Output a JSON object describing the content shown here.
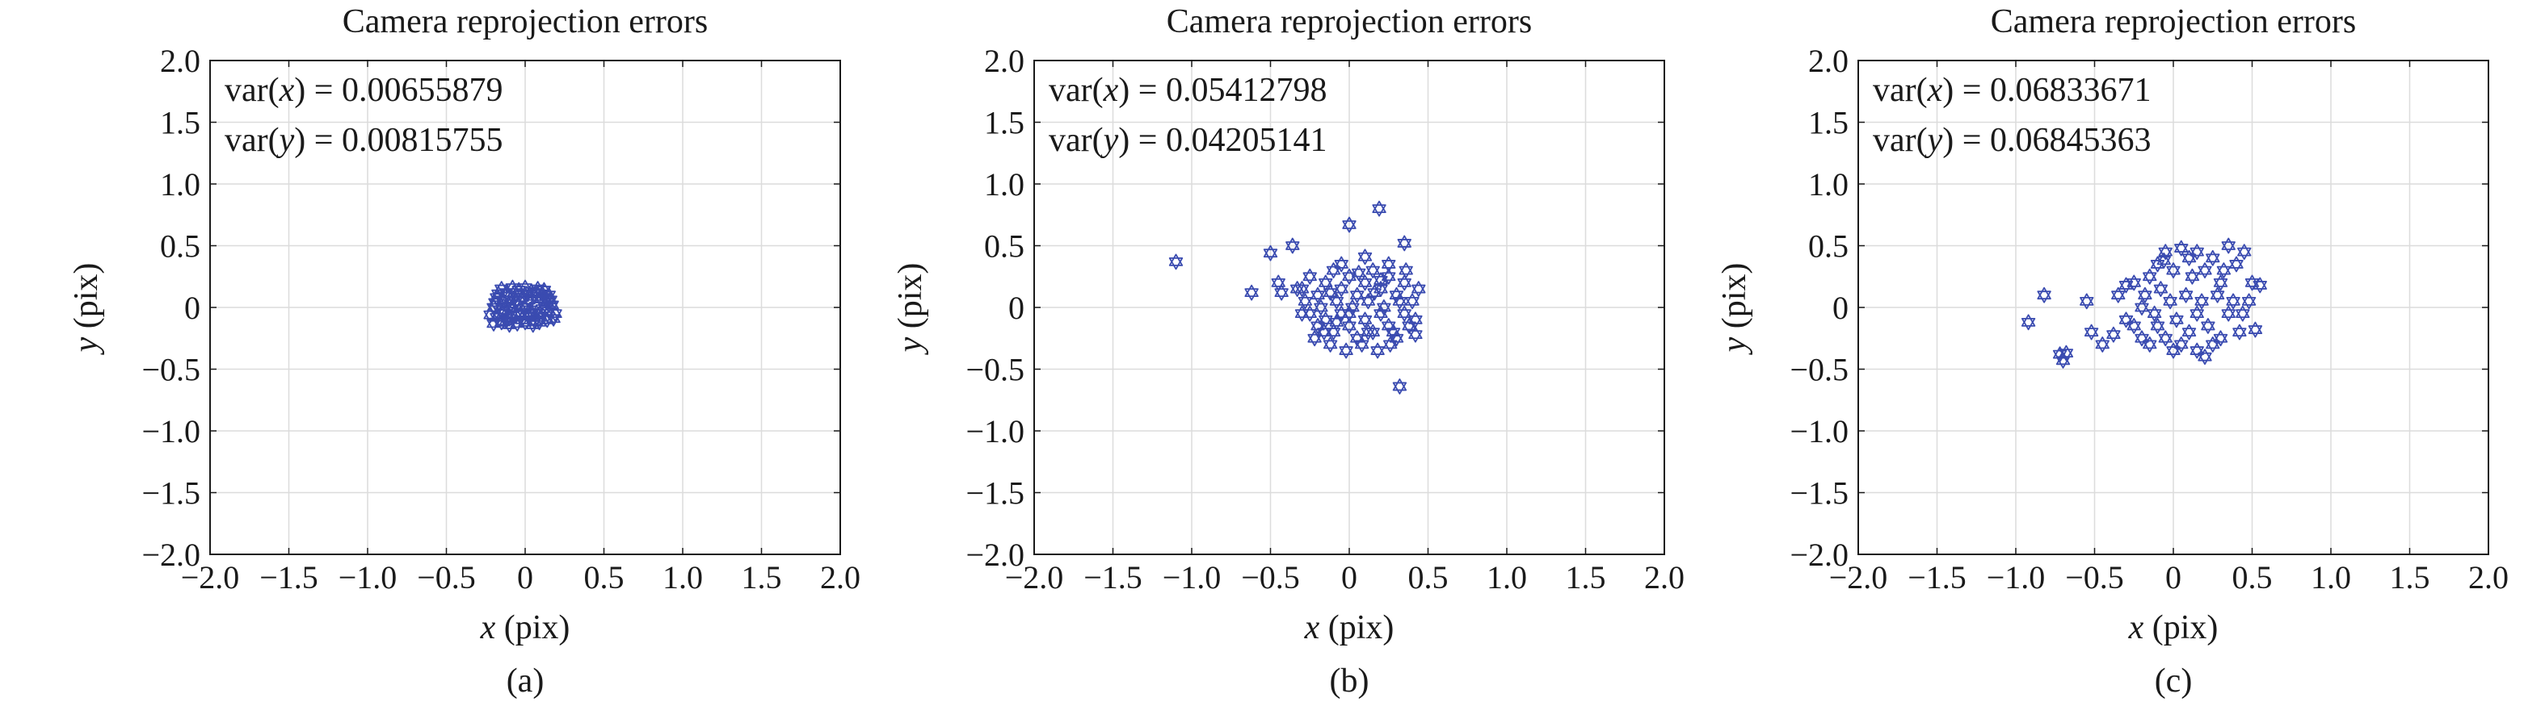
{
  "figure": {
    "panels": [
      "(a)",
      "(b)",
      "(c)"
    ]
  },
  "chart_data": [
    {
      "type": "scatter",
      "panel_label": "(a)",
      "title": "Camera reprojection errors",
      "xlabel": {
        "var": "x",
        "unit": "(pix)"
      },
      "ylabel": {
        "var": "y",
        "unit": "(pix)"
      },
      "xlim": [
        -2.0,
        2.0
      ],
      "ylim": [
        -2.0,
        2.0
      ],
      "xticks": [
        "−2.0",
        "−1.5",
        "−1.0",
        "−0.5",
        "0",
        "0.5",
        "1.0",
        "1.5",
        "2.0"
      ],
      "yticks": [
        "−2.0",
        "−1.5",
        "−1.0",
        "−0.5",
        "0",
        "0.5",
        "1.0",
        "1.5",
        "2.0"
      ],
      "grid": true,
      "marker": "hexagram",
      "marker_color": "#3a4bb0",
      "annotations": [
        {
          "prefix": "var(",
          "var": "x",
          "suffix": ") = 0.00655879"
        },
        {
          "prefix": "var(",
          "var": "y",
          "suffix": ") = 0.00815755"
        }
      ],
      "series": [
        {
          "points": [
            [
              -0.15,
              0.15
            ],
            [
              -0.12,
              0.12
            ],
            [
              -0.08,
              0.16
            ],
            [
              -0.04,
              0.14
            ],
            [
              0.0,
              0.16
            ],
            [
              0.04,
              0.13
            ],
            [
              0.08,
              0.15
            ],
            [
              0.12,
              0.14
            ],
            [
              0.15,
              0.1
            ],
            [
              -0.18,
              0.08
            ],
            [
              -0.14,
              0.06
            ],
            [
              -0.1,
              0.09
            ],
            [
              -0.06,
              0.05
            ],
            [
              -0.02,
              0.08
            ],
            [
              0.02,
              0.06
            ],
            [
              0.06,
              0.09
            ],
            [
              0.1,
              0.07
            ],
            [
              0.14,
              0.04
            ],
            [
              0.17,
              0.02
            ],
            [
              -0.2,
              0.0
            ],
            [
              -0.16,
              -0.02
            ],
            [
              -0.12,
              0.01
            ],
            [
              -0.08,
              -0.01
            ],
            [
              -0.04,
              0.02
            ],
            [
              0.0,
              0.0
            ],
            [
              0.03,
              -0.02
            ],
            [
              0.07,
              0.01
            ],
            [
              0.11,
              -0.01
            ],
            [
              0.15,
              -0.03
            ],
            [
              -0.22,
              -0.06
            ],
            [
              -0.18,
              -0.08
            ],
            [
              -0.14,
              -0.05
            ],
            [
              -0.1,
              -0.09
            ],
            [
              -0.06,
              -0.06
            ],
            [
              -0.02,
              -0.1
            ],
            [
              0.02,
              -0.07
            ],
            [
              0.06,
              -0.11
            ],
            [
              0.1,
              -0.08
            ],
            [
              0.14,
              -0.1
            ],
            [
              0.18,
              -0.09
            ],
            [
              -0.2,
              -0.13
            ],
            [
              -0.15,
              -0.12
            ],
            [
              -0.1,
              -0.14
            ],
            [
              -0.05,
              -0.13
            ],
            [
              0.0,
              -0.12
            ],
            [
              0.05,
              -0.14
            ],
            [
              0.09,
              -0.12
            ],
            [
              -0.17,
              0.11
            ],
            [
              0.11,
              0.11
            ],
            [
              -0.07,
              0.12
            ],
            [
              0.04,
              -0.04
            ],
            [
              -0.12,
              -0.11
            ],
            [
              0.13,
              0.07
            ],
            [
              -0.03,
              -0.05
            ],
            [
              0.07,
              0.12
            ],
            [
              -0.19,
              0.04
            ],
            [
              0.16,
              0.06
            ],
            [
              -0.09,
              0.03
            ],
            [
              0.01,
              0.11
            ],
            [
              -0.14,
              -0.02
            ],
            [
              0.09,
              -0.05
            ],
            [
              0.19,
              -0.05
            ]
          ]
        }
      ]
    },
    {
      "type": "scatter",
      "panel_label": "(b)",
      "title": "Camera reprojection errors",
      "xlabel": {
        "var": "x",
        "unit": "(pix)"
      },
      "ylabel": {
        "var": "y",
        "unit": "(pix)"
      },
      "xlim": [
        -2.0,
        2.0
      ],
      "ylim": [
        -2.0,
        2.0
      ],
      "xticks": [
        "−2.0",
        "−1.5",
        "−1.0",
        "−0.5",
        "0",
        "0.5",
        "1.0",
        "1.5",
        "2.0"
      ],
      "yticks": [
        "−2.0",
        "−1.5",
        "−1.0",
        "−0.5",
        "0",
        "0.5",
        "1.0",
        "1.5",
        "2.0"
      ],
      "grid": true,
      "marker": "hexagram",
      "marker_color": "#3a4bb0",
      "annotations": [
        {
          "prefix": "var(",
          "var": "x",
          "suffix": ") = 0.05412798"
        },
        {
          "prefix": "var(",
          "var": "y",
          "suffix": ") = 0.04205141"
        }
      ],
      "series": [
        {
          "points": [
            [
              -1.1,
              0.37
            ],
            [
              -0.62,
              0.12
            ],
            [
              -0.5,
              0.44
            ],
            [
              -0.45,
              0.2
            ],
            [
              -0.43,
              0.12
            ],
            [
              -0.36,
              0.5
            ],
            [
              -0.33,
              0.15
            ],
            [
              -0.3,
              -0.05
            ],
            [
              0.0,
              0.67
            ],
            [
              0.19,
              0.8
            ],
            [
              0.35,
              0.52
            ],
            [
              0.32,
              -0.64
            ],
            [
              0.1,
              0.41
            ],
            [
              -0.25,
              0.25
            ],
            [
              -0.2,
              0.1
            ],
            [
              -0.15,
              0.2
            ],
            [
              -0.1,
              0.3
            ],
            [
              -0.05,
              0.15
            ],
            [
              0.0,
              0.25
            ],
            [
              0.05,
              0.1
            ],
            [
              0.1,
              0.2
            ],
            [
              0.15,
              0.3
            ],
            [
              0.2,
              0.15
            ],
            [
              0.25,
              0.25
            ],
            [
              0.3,
              0.1
            ],
            [
              0.35,
              0.2
            ],
            [
              0.4,
              0.05
            ],
            [
              0.42,
              -0.1
            ],
            [
              -0.25,
              -0.05
            ],
            [
              -0.2,
              -0.15
            ],
            [
              -0.15,
              -0.1
            ],
            [
              -0.1,
              -0.2
            ],
            [
              -0.05,
              -0.05
            ],
            [
              0.0,
              -0.15
            ],
            [
              0.05,
              -0.25
            ],
            [
              0.1,
              -0.1
            ],
            [
              0.15,
              -0.2
            ],
            [
              0.2,
              -0.05
            ],
            [
              0.25,
              -0.15
            ],
            [
              0.3,
              -0.25
            ],
            [
              0.35,
              -0.05
            ],
            [
              -0.22,
              -0.25
            ],
            [
              -0.12,
              -0.3
            ],
            [
              -0.02,
              -0.35
            ],
            [
              0.08,
              -0.3
            ],
            [
              0.18,
              -0.35
            ],
            [
              0.28,
              -0.2
            ],
            [
              0.38,
              -0.15
            ],
            [
              -0.18,
              0.0
            ],
            [
              -0.08,
              0.05
            ],
            [
              0.02,
              0.0
            ],
            [
              0.12,
              0.05
            ],
            [
              0.22,
              0.0
            ],
            [
              0.32,
              0.05
            ],
            [
              -0.28,
              0.05
            ],
            [
              0.44,
              0.15
            ],
            [
              0.12,
              -0.2
            ],
            [
              -0.05,
              0.35
            ],
            [
              0.25,
              0.35
            ],
            [
              0.0,
              -0.05
            ],
            [
              -0.12,
              0.12
            ],
            [
              0.16,
              0.12
            ],
            [
              0.06,
              0.28
            ],
            [
              -0.16,
              -0.2
            ],
            [
              0.26,
              -0.3
            ],
            [
              0.36,
              0.3
            ],
            [
              -0.3,
              0.15
            ],
            [
              0.42,
              -0.22
            ],
            [
              -0.08,
              -0.12
            ],
            [
              0.2,
              0.22
            ]
          ]
        }
      ]
    },
    {
      "type": "scatter",
      "panel_label": "(c)",
      "title": "Camera reprojection errors",
      "xlabel": {
        "var": "x",
        "unit": "(pix)"
      },
      "ylabel": {
        "var": "y",
        "unit": "(pix)"
      },
      "xlim": [
        -2.0,
        2.0
      ],
      "ylim": [
        -2.0,
        2.0
      ],
      "xticks": [
        "−2.0",
        "−1.5",
        "−1.0",
        "−0.5",
        "0",
        "0.5",
        "1.0",
        "1.5",
        "2.0"
      ],
      "yticks": [
        "−2.0",
        "−1.5",
        "−1.0",
        "−0.5",
        "0",
        "0.5",
        "1.0",
        "1.5",
        "2.0"
      ],
      "grid": true,
      "marker": "hexagram",
      "marker_color": "#3a4bb0",
      "annotations": [
        {
          "prefix": "var(",
          "var": "x",
          "suffix": ") = 0.06833671"
        },
        {
          "prefix": "var(",
          "var": "y",
          "suffix": ") = 0.06845363"
        }
      ],
      "series": [
        {
          "points": [
            [
              -0.92,
              -0.12
            ],
            [
              -0.82,
              0.1
            ],
            [
              -0.72,
              -0.38
            ],
            [
              -0.7,
              -0.43
            ],
            [
              -0.68,
              -0.37
            ],
            [
              -0.55,
              0.05
            ],
            [
              -0.52,
              -0.2
            ],
            [
              -0.45,
              -0.3
            ],
            [
              -0.38,
              -0.22
            ],
            [
              -0.35,
              0.1
            ],
            [
              -0.3,
              -0.1
            ],
            [
              -0.25,
              0.2
            ],
            [
              -0.2,
              0.0
            ],
            [
              -0.2,
              -0.25
            ],
            [
              -0.15,
              0.25
            ],
            [
              -0.1,
              0.35
            ],
            [
              -0.05,
              0.45
            ],
            [
              0.0,
              0.3
            ],
            [
              0.05,
              0.48
            ],
            [
              0.1,
              0.4
            ],
            [
              0.15,
              0.45
            ],
            [
              0.2,
              0.3
            ],
            [
              0.25,
              0.4
            ],
            [
              0.3,
              0.2
            ],
            [
              0.35,
              0.5
            ],
            [
              0.4,
              0.35
            ],
            [
              0.45,
              0.45
            ],
            [
              0.5,
              0.2
            ],
            [
              0.55,
              0.18
            ],
            [
              0.52,
              -0.18
            ],
            [
              0.42,
              -0.2
            ],
            [
              0.35,
              -0.05
            ],
            [
              0.3,
              -0.25
            ],
            [
              0.25,
              -0.3
            ],
            [
              0.2,
              -0.4
            ],
            [
              0.15,
              -0.35
            ],
            [
              0.1,
              -0.2
            ],
            [
              0.05,
              -0.3
            ],
            [
              0.0,
              -0.35
            ],
            [
              -0.05,
              -0.25
            ],
            [
              -0.1,
              -0.15
            ],
            [
              -0.15,
              -0.3
            ],
            [
              0.08,
              0.1
            ],
            [
              -0.08,
              0.15
            ],
            [
              0.18,
              0.05
            ],
            [
              -0.12,
              -0.05
            ],
            [
              0.28,
              0.1
            ],
            [
              0.38,
              0.05
            ],
            [
              0.48,
              0.05
            ],
            [
              -0.25,
              -0.15
            ],
            [
              0.12,
              0.25
            ],
            [
              -0.02,
              0.05
            ],
            [
              0.22,
              -0.15
            ],
            [
              -0.18,
              0.1
            ],
            [
              0.32,
              0.3
            ],
            [
              0.02,
              -0.1
            ],
            [
              0.44,
              -0.05
            ],
            [
              -0.3,
              0.18
            ],
            [
              0.15,
              -0.05
            ],
            [
              -0.06,
              0.38
            ]
          ]
        }
      ]
    }
  ]
}
